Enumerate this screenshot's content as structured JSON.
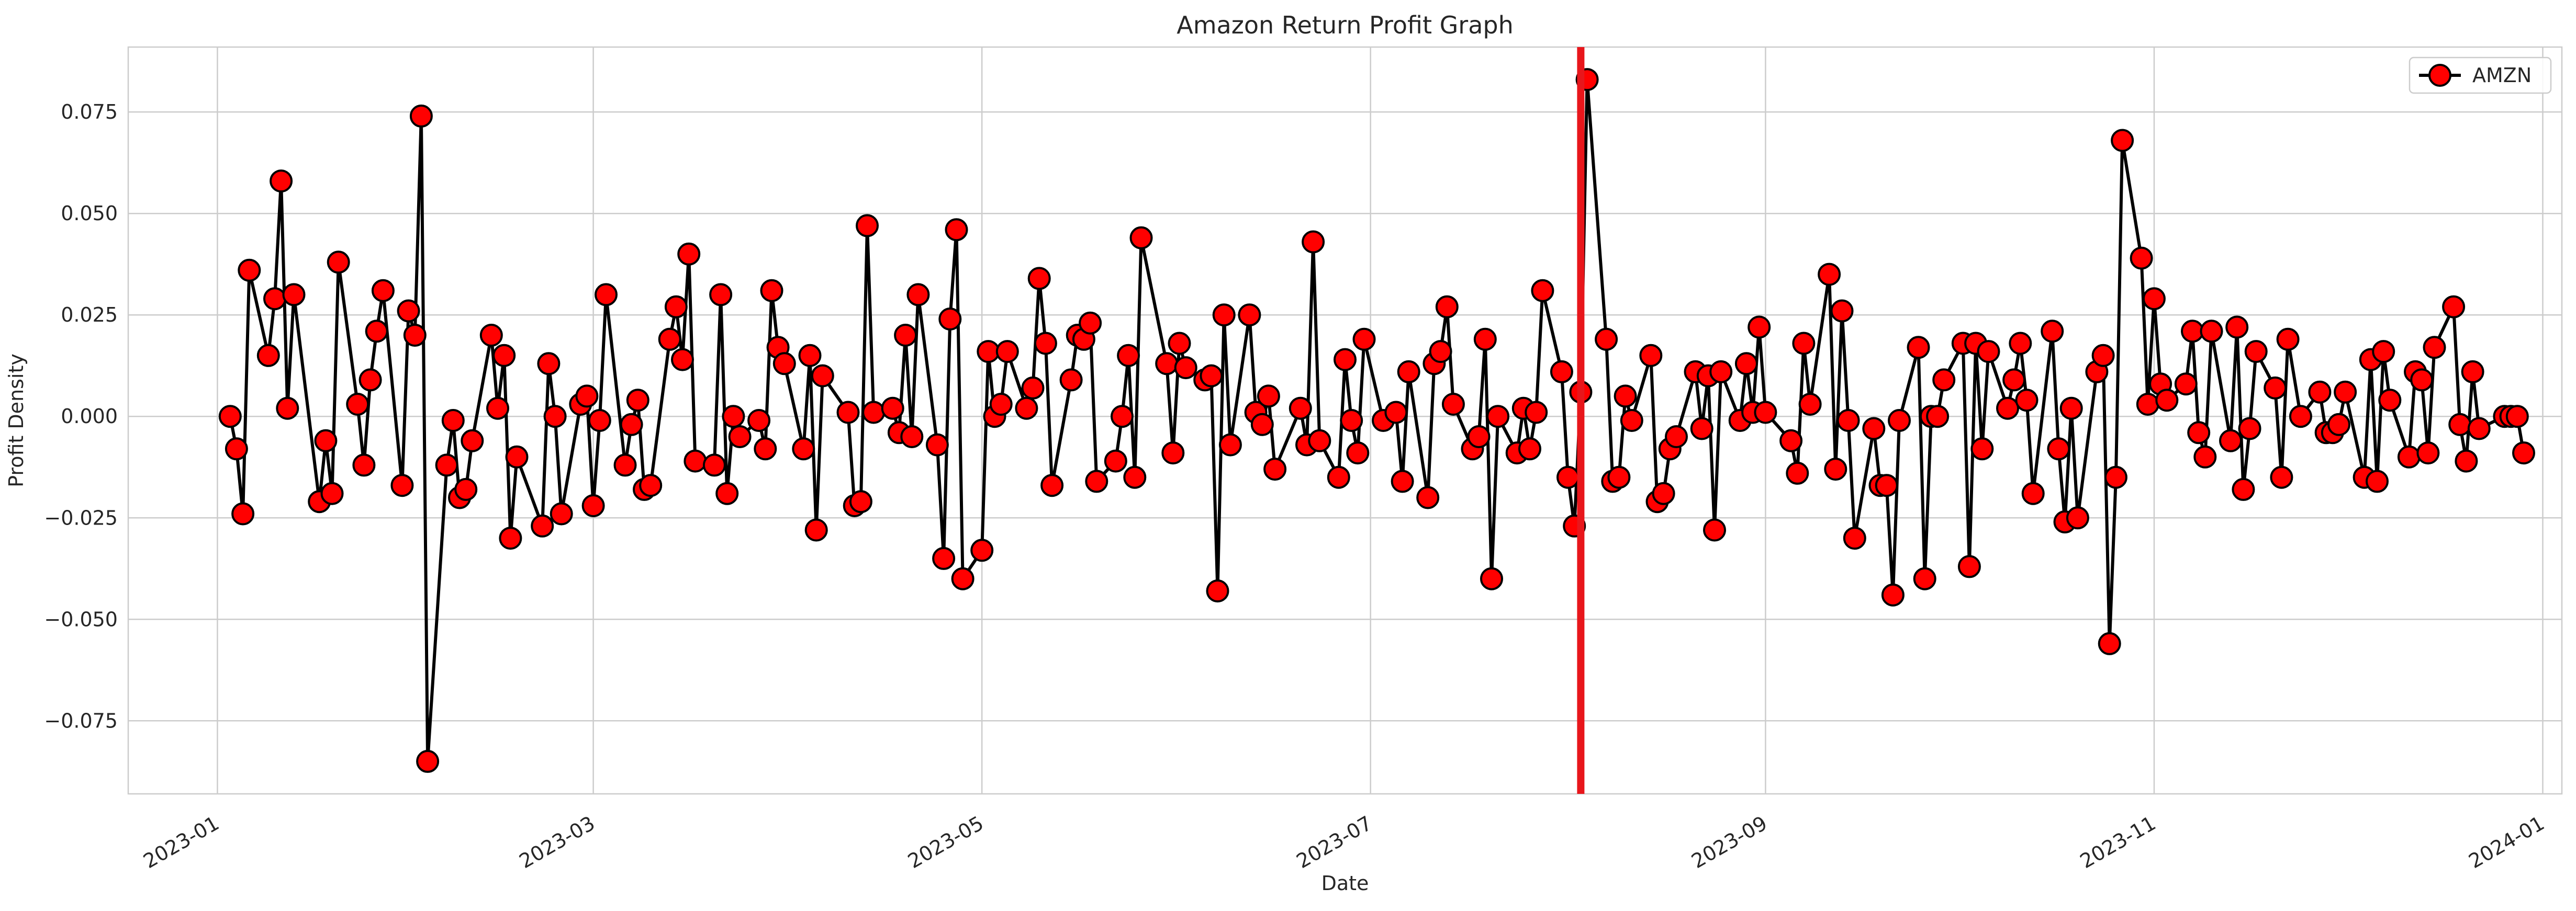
{
  "chart_data": {
    "type": "line",
    "title": "Amazon Return Profit Graph",
    "xlabel": "Date",
    "ylabel": "Profit Density",
    "x_axis_type": "date",
    "xlim": [
      "2022-12-18",
      "2024-01-04"
    ],
    "ylim": [
      -0.093,
      0.091
    ],
    "x_ticks": [
      "2023-01-01",
      "2023-03-01",
      "2023-05-01",
      "2023-07-01",
      "2023-09-01",
      "2023-11-01",
      "2024-01-01"
    ],
    "x_tick_labels": [
      "2023-01",
      "2023-03",
      "2023-05",
      "2023-07",
      "2023-09",
      "2023-11",
      "2024-01"
    ],
    "y_ticks": [
      -0.075,
      -0.05,
      -0.025,
      0.0,
      0.025,
      0.05,
      0.075
    ],
    "y_tick_labels": [
      "−0.075",
      "−0.050",
      "−0.025",
      "0.000",
      "0.025",
      "0.050",
      "0.075"
    ],
    "grid": true,
    "legend_position": "top-right",
    "vertical_line": {
      "x": "2023-08-03",
      "color": "#e8161b"
    },
    "series": [
      {
        "name": "AMZN",
        "line_color": "#000000",
        "marker_color": "#ff0000",
        "x": [
          "2023-01-03",
          "2023-01-04",
          "2023-01-05",
          "2023-01-06",
          "2023-01-09",
          "2023-01-10",
          "2023-01-11",
          "2023-01-12",
          "2023-01-13",
          "2023-01-17",
          "2023-01-18",
          "2023-01-19",
          "2023-01-20",
          "2023-01-23",
          "2023-01-24",
          "2023-01-25",
          "2023-01-26",
          "2023-01-27",
          "2023-01-30",
          "2023-01-31",
          "2023-02-01",
          "2023-02-02",
          "2023-02-03",
          "2023-02-06",
          "2023-02-07",
          "2023-02-08",
          "2023-02-09",
          "2023-02-10",
          "2023-02-13",
          "2023-02-14",
          "2023-02-15",
          "2023-02-16",
          "2023-02-17",
          "2023-02-21",
          "2023-02-22",
          "2023-02-23",
          "2023-02-24",
          "2023-02-27",
          "2023-02-28",
          "2023-03-01",
          "2023-03-02",
          "2023-03-03",
          "2023-03-06",
          "2023-03-07",
          "2023-03-08",
          "2023-03-09",
          "2023-03-10",
          "2023-03-13",
          "2023-03-14",
          "2023-03-15",
          "2023-03-16",
          "2023-03-17",
          "2023-03-20",
          "2023-03-21",
          "2023-03-22",
          "2023-03-23",
          "2023-03-24",
          "2023-03-27",
          "2023-03-28",
          "2023-03-29",
          "2023-03-30",
          "2023-03-31",
          "2023-04-03",
          "2023-04-04",
          "2023-04-05",
          "2023-04-06",
          "2023-04-10",
          "2023-04-11",
          "2023-04-12",
          "2023-04-13",
          "2023-04-14",
          "2023-04-17",
          "2023-04-18",
          "2023-04-19",
          "2023-04-20",
          "2023-04-21",
          "2023-04-24",
          "2023-04-25",
          "2023-04-26",
          "2023-04-27",
          "2023-04-28",
          "2023-05-01",
          "2023-05-02",
          "2023-05-03",
          "2023-05-04",
          "2023-05-05",
          "2023-05-08",
          "2023-05-09",
          "2023-05-10",
          "2023-05-11",
          "2023-05-12",
          "2023-05-15",
          "2023-05-16",
          "2023-05-17",
          "2023-05-18",
          "2023-05-19",
          "2023-05-22",
          "2023-05-23",
          "2023-05-24",
          "2023-05-25",
          "2023-05-26",
          "2023-05-30",
          "2023-05-31",
          "2023-06-01",
          "2023-06-02",
          "2023-06-05",
          "2023-06-06",
          "2023-06-07",
          "2023-06-08",
          "2023-06-09",
          "2023-06-12",
          "2023-06-13",
          "2023-06-14",
          "2023-06-15",
          "2023-06-16",
          "2023-06-20",
          "2023-06-21",
          "2023-06-22",
          "2023-06-23",
          "2023-06-26",
          "2023-06-27",
          "2023-06-28",
          "2023-06-29",
          "2023-06-30",
          "2023-07-03",
          "2023-07-05",
          "2023-07-06",
          "2023-07-07",
          "2023-07-10",
          "2023-07-11",
          "2023-07-12",
          "2023-07-13",
          "2023-07-14",
          "2023-07-17",
          "2023-07-18",
          "2023-07-19",
          "2023-07-20",
          "2023-07-21",
          "2023-07-24",
          "2023-07-25",
          "2023-07-26",
          "2023-07-27",
          "2023-07-28",
          "2023-07-31",
          "2023-08-01",
          "2023-08-02",
          "2023-08-03",
          "2023-08-04",
          "2023-08-07",
          "2023-08-08",
          "2023-08-09",
          "2023-08-10",
          "2023-08-11",
          "2023-08-14",
          "2023-08-15",
          "2023-08-16",
          "2023-08-17",
          "2023-08-18",
          "2023-08-21",
          "2023-08-22",
          "2023-08-23",
          "2023-08-24",
          "2023-08-25",
          "2023-08-28",
          "2023-08-29",
          "2023-08-30",
          "2023-08-31",
          "2023-09-01",
          "2023-09-05",
          "2023-09-06",
          "2023-09-07",
          "2023-09-08",
          "2023-09-11",
          "2023-09-12",
          "2023-09-13",
          "2023-09-14",
          "2023-09-15",
          "2023-09-18",
          "2023-09-19",
          "2023-09-20",
          "2023-09-21",
          "2023-09-22",
          "2023-09-25",
          "2023-09-26",
          "2023-09-27",
          "2023-09-28",
          "2023-09-29",
          "2023-10-02",
          "2023-10-03",
          "2023-10-04",
          "2023-10-05",
          "2023-10-06",
          "2023-10-09",
          "2023-10-10",
          "2023-10-11",
          "2023-10-12",
          "2023-10-13",
          "2023-10-16",
          "2023-10-17",
          "2023-10-18",
          "2023-10-19",
          "2023-10-20",
          "2023-10-23",
          "2023-10-24",
          "2023-10-25",
          "2023-10-26",
          "2023-10-27",
          "2023-10-30",
          "2023-10-31",
          "2023-11-01",
          "2023-11-02",
          "2023-11-03",
          "2023-11-06",
          "2023-11-07",
          "2023-11-08",
          "2023-11-09",
          "2023-11-10",
          "2023-11-13",
          "2023-11-14",
          "2023-11-15",
          "2023-11-16",
          "2023-11-17",
          "2023-11-20",
          "2023-11-21",
          "2023-11-22",
          "2023-11-24",
          "2023-11-27",
          "2023-11-28",
          "2023-11-29",
          "2023-11-30",
          "2023-12-01",
          "2023-12-04",
          "2023-12-05",
          "2023-12-06",
          "2023-12-07",
          "2023-12-08",
          "2023-12-11",
          "2023-12-12",
          "2023-12-13",
          "2023-12-14",
          "2023-12-15",
          "2023-12-18",
          "2023-12-19",
          "2023-12-20",
          "2023-12-21",
          "2023-12-22",
          "2023-12-26",
          "2023-12-27",
          "2023-12-28",
          "2023-12-29"
        ],
        "y": [
          0.0,
          -0.008,
          -0.024,
          0.036,
          0.015,
          0.029,
          0.058,
          0.002,
          0.03,
          -0.021,
          -0.006,
          -0.019,
          0.038,
          0.003,
          -0.012,
          0.009,
          0.021,
          0.031,
          -0.017,
          0.026,
          0.02,
          0.074,
          -0.085,
          -0.012,
          -0.001,
          -0.02,
          -0.018,
          -0.006,
          0.02,
          0.002,
          0.015,
          -0.03,
          -0.01,
          -0.027,
          0.013,
          0.0,
          -0.024,
          0.003,
          0.005,
          -0.022,
          -0.001,
          0.03,
          -0.012,
          -0.002,
          0.004,
          -0.018,
          -0.017,
          0.019,
          0.027,
          0.014,
          0.04,
          -0.011,
          -0.012,
          0.03,
          -0.019,
          0.0,
          -0.005,
          -0.001,
          -0.008,
          0.031,
          0.017,
          0.013,
          -0.008,
          0.015,
          -0.028,
          0.01,
          0.001,
          -0.022,
          -0.021,
          0.047,
          0.001,
          0.002,
          -0.004,
          0.02,
          -0.005,
          0.03,
          -0.007,
          -0.035,
          0.024,
          0.046,
          -0.04,
          -0.033,
          0.016,
          0.0,
          0.003,
          0.016,
          0.002,
          0.007,
          0.034,
          0.018,
          -0.017,
          0.009,
          0.02,
          0.019,
          0.023,
          -0.016,
          -0.011,
          0.0,
          0.015,
          -0.015,
          0.044,
          0.013,
          -0.009,
          0.018,
          0.012,
          0.009,
          0.01,
          -0.043,
          0.025,
          -0.007,
          0.025,
          0.001,
          -0.002,
          0.005,
          -0.013,
          0.002,
          -0.007,
          0.043,
          -0.006,
          -0.015,
          0.014,
          -0.001,
          -0.009,
          0.019,
          -0.001,
          0.001,
          -0.016,
          0.011,
          -0.02,
          0.013,
          0.016,
          0.027,
          0.003,
          -0.008,
          -0.005,
          0.019,
          -0.04,
          0.0,
          -0.009,
          0.002,
          -0.008,
          0.001,
          0.031,
          0.011,
          -0.015,
          -0.027,
          0.006,
          0.083,
          0.019,
          -0.016,
          -0.015,
          0.005,
          -0.001,
          0.015,
          -0.021,
          -0.019,
          -0.008,
          -0.005,
          0.011,
          -0.003,
          0.01,
          -0.028,
          0.011,
          -0.001,
          0.013,
          0.001,
          0.022,
          0.001,
          -0.006,
          -0.014,
          0.018,
          0.003,
          0.035,
          -0.013,
          0.026,
          -0.001,
          -0.03,
          -0.003,
          -0.017,
          -0.017,
          -0.044,
          -0.001,
          0.017,
          -0.04,
          0.0,
          0.0,
          0.009,
          0.018,
          -0.037,
          0.018,
          -0.008,
          0.016,
          0.002,
          0.009,
          0.018,
          0.004,
          -0.019,
          0.021,
          -0.008,
          -0.026,
          0.002,
          -0.025,
          0.011,
          0.015,
          -0.056,
          -0.015,
          0.068,
          0.039,
          0.003,
          0.029,
          0.008,
          0.004,
          0.008,
          0.021,
          -0.004,
          -0.01,
          0.021,
          -0.006,
          0.022,
          -0.018,
          -0.003,
          0.016,
          0.007,
          -0.015,
          0.019,
          0.0,
          0.006,
          -0.004,
          -0.004,
          -0.002,
          0.006,
          -0.015,
          0.014,
          -0.016,
          0.016,
          0.004,
          -0.01,
          0.011,
          0.009,
          -0.009,
          0.017,
          0.027,
          -0.002,
          -0.011,
          0.011,
          -0.003,
          0.0,
          0.0,
          0.0,
          -0.009
        ]
      }
    ]
  }
}
